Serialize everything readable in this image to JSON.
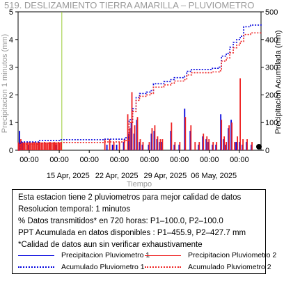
{
  "chart_data": {
    "type": "bar",
    "title": "519. DESLIZAMIENTO TIERRA AMARILLA – PLUVIOMETRO",
    "xlabel": "Tiempo",
    "ylabel_left": "Precipitacion 1 minutos (mm)",
    "ylabel_right": "Precipitacion Acumulada (mm)",
    "x_range": [
      "2025-04-08",
      "2025-05-13"
    ],
    "ylim_left": [
      0,
      5
    ],
    "ylim_right": [
      0,
      500
    ],
    "yticks_left": [
      "0",
      "1",
      "2",
      "3",
      "4",
      "5"
    ],
    "yticks_right": [
      "0",
      "100",
      "200",
      "300",
      "400",
      "500"
    ],
    "xticks_time": [
      "00:00",
      "00:00",
      "00:00",
      "00:00",
      "00:00",
      "00:00",
      "00:00",
      "00:00",
      "00:00"
    ],
    "xticks_date": [
      "15 Apr, 2025",
      "22 Apr, 2025",
      "29 Apr, 2025",
      "06 May, 2025"
    ],
    "vertical_marker_day": 6.3,
    "series": [
      {
        "name": "Precipitacion Pluviometro 1",
        "color": "#0000dd",
        "kind": "bar",
        "x_days": [
          0.2,
          0.6,
          1.5,
          3.0,
          4.5,
          5.5,
          12.8,
          13.6,
          14.2,
          15.2,
          15.9,
          16.3,
          16.7,
          17.1,
          17.5,
          17.9,
          18.8,
          19.2,
          19.6,
          20.0,
          20.4,
          20.7,
          22.0,
          22.5,
          23.2,
          24.0,
          24.8,
          26.0,
          26.6,
          27.1,
          27.4,
          28.0,
          28.5,
          29.2,
          29.6,
          29.9,
          30.3,
          30.7,
          31.4,
          31.9,
          32.3,
          32.9,
          33.6
        ],
        "values": [
          0.7,
          0.3,
          0.2,
          0.3,
          0.2,
          0.2,
          0.2,
          0.2,
          0.2,
          0.3,
          0.6,
          1.0,
          0.6,
          1.1,
          0.3,
          0.2,
          0.2,
          0.6,
          0.7,
          0.4,
          0.3,
          0.3,
          0.7,
          0.2,
          0.2,
          1.5,
          0.7,
          0.2,
          0.5,
          0.4,
          0.3,
          0.2,
          0.2,
          1.3,
          0.4,
          0.2,
          0.8,
          1.1,
          0.3,
          0.3,
          0.2,
          0.3,
          0.2
        ]
      },
      {
        "name": "Precipitacion Pluviometro 2",
        "color": "#ee2222",
        "kind": "bar",
        "x_days": [
          0.4,
          0.9,
          1.6,
          2.3,
          3.1,
          3.8,
          4.6,
          5.2,
          5.8,
          6.2,
          12.5,
          13.2,
          13.8,
          14.6,
          15.3,
          15.8,
          16.1,
          16.4,
          16.8,
          17.2,
          17.6,
          18.0,
          18.9,
          19.3,
          19.7,
          20.1,
          20.5,
          20.8,
          22.1,
          22.6,
          23.3,
          24.1,
          24.9,
          25.5,
          26.1,
          26.7,
          27.2,
          27.5,
          28.1,
          28.6,
          29.3,
          29.7,
          30.0,
          30.4,
          30.8,
          31.2,
          31.6,
          32.0,
          32.4,
          33.0,
          33.7
        ],
        "values": [
          0.4,
          0.3,
          0.3,
          0.3,
          0.3,
          0.3,
          0.3,
          0.3,
          0.3,
          0.3,
          0.4,
          0.4,
          0.3,
          0.3,
          0.4,
          1.3,
          0.8,
          2.1,
          0.9,
          1.2,
          0.4,
          0.3,
          0.3,
          0.8,
          0.9,
          0.5,
          0.4,
          0.4,
          1.0,
          0.3,
          0.3,
          1.2,
          0.9,
          0.3,
          0.3,
          0.6,
          0.5,
          0.4,
          0.3,
          0.3,
          1.1,
          0.5,
          0.3,
          0.9,
          1.0,
          0.3,
          0.5,
          2.6,
          0.4,
          0.4,
          0.3
        ]
      },
      {
        "name": "Acumulado Pluviometro 1",
        "color": "#0000dd",
        "kind": "line",
        "dash": "dotted",
        "x_days": [
          0,
          0.3,
          3.0,
          6.0,
          12.5,
          15.5,
          16.0,
          16.5,
          17.0,
          17.5,
          18.5,
          19.0,
          19.5,
          21.0,
          22.0,
          22.5,
          24.0,
          24.3,
          25.0,
          28.0,
          29.0,
          29.3,
          30.0,
          30.5,
          31.0,
          31.5,
          32.0,
          32.5,
          33.5,
          35.0
        ],
        "values": [
          0,
          30,
          35,
          38,
          40,
          45,
          110,
          150,
          190,
          205,
          210,
          215,
          240,
          248,
          255,
          262,
          268,
          285,
          292,
          296,
          300,
          340,
          350,
          372,
          390,
          400,
          412,
          446,
          452,
          455.9
        ]
      },
      {
        "name": "Acumulado Pluviometro 2",
        "color": "#ee2222",
        "kind": "line",
        "dash": "dotted",
        "x_days": [
          0,
          0.3,
          3.0,
          6.0,
          12.5,
          15.5,
          16.0,
          16.5,
          17.0,
          17.5,
          18.5,
          19.0,
          19.5,
          21.0,
          22.0,
          22.5,
          24.0,
          24.3,
          25.0,
          28.0,
          29.0,
          29.3,
          30.0,
          30.5,
          31.0,
          31.5,
          32.0,
          32.5,
          33.5,
          35.0
        ],
        "values": [
          0,
          22,
          26,
          28,
          30,
          35,
          100,
          140,
          180,
          195,
          200,
          205,
          228,
          236,
          242,
          250,
          255,
          272,
          280,
          283,
          287,
          322,
          333,
          352,
          370,
          380,
          393,
          418,
          424,
          427.7
        ]
      }
    ]
  },
  "info": {
    "lines": [
      "Esta estacion tiene 2 pluviometros para mejor calidad de datos",
      "Resolucion temporal: 1 minutos",
      "% Datos transmitidos* en 720 horas: P1–100.0, P2–100.0",
      "PPT Acumulada en datos disponibles : P1–455.9, P2–427.7 mm",
      "*Calidad de datos aun sin verificar exhaustivamente"
    ],
    "legend": [
      {
        "label": "Precipitacion Pluviometro 1",
        "color": "#0000dd",
        "style": "solid"
      },
      {
        "label": "Precipitacion Pluviometro 2",
        "color": "#ee2222",
        "style": "solid"
      },
      {
        "label": "Acumulado Pluviometro 1",
        "color": "#0000dd",
        "style": "dotted"
      },
      {
        "label": "Acumulado Pluviometro 2",
        "color": "#ee2222",
        "style": "dotted"
      }
    ]
  }
}
